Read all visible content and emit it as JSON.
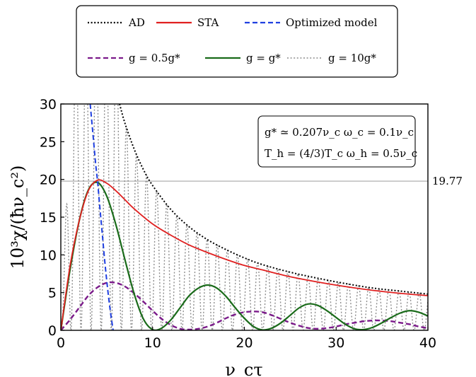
{
  "chart_data": {
    "type": "line",
    "xlabel": "ν_cτ",
    "ylabel": "10³χ/(ħν_c²)",
    "xlim": [
      0,
      40
    ],
    "ylim": [
      0,
      30
    ],
    "xticks": [
      0,
      10,
      20,
      30,
      40
    ],
    "yticks": [
      0,
      5,
      10,
      15,
      20,
      25,
      30
    ],
    "reference_line": {
      "y": 19.77,
      "label": "19.77",
      "color": "#bdbdbd"
    },
    "annotation": {
      "line1": "g* ≃ 0.207ν_c   ω_c = 0.1ν_c",
      "line2": "T_h = (4/3)T_c   ω_h = 0.5ν_c",
      "placement": "top-right"
    },
    "legend_placement": "top-center (outside plot)",
    "series": [
      {
        "name": "AD",
        "color": "#000000",
        "style": "dotted",
        "x": [
          6.4,
          7,
          8,
          9,
          10,
          12,
          14,
          16,
          18,
          20,
          22,
          25,
          28,
          31,
          34,
          37,
          40
        ],
        "y": [
          30.0,
          27.4,
          24.0,
          21.3,
          19.2,
          16.0,
          13.7,
          12.0,
          10.7,
          9.6,
          8.7,
          7.7,
          6.9,
          6.2,
          5.6,
          5.2,
          4.8
        ]
      },
      {
        "name": "STA",
        "color": "#e02020",
        "style": "solid",
        "x": [
          0,
          1,
          2,
          3,
          4,
          5,
          6,
          7,
          8,
          10,
          12,
          14,
          16,
          18,
          20,
          22,
          25,
          28,
          31,
          34,
          37,
          40
        ],
        "y": [
          0,
          8.5,
          14.5,
          18.5,
          19.9,
          19.5,
          18.5,
          17.3,
          16.1,
          14.1,
          12.6,
          11.3,
          10.3,
          9.4,
          8.6,
          8.0,
          7.1,
          6.4,
          5.8,
          5.3,
          4.9,
          4.6
        ]
      },
      {
        "name": "Optimized model",
        "color": "#1f3fe0",
        "style": "dashed",
        "x": [
          3.2,
          3.5,
          3.8,
          4.0,
          4.2,
          4.5,
          4.8,
          5.1,
          5.4,
          5.7
        ],
        "y": [
          30.0,
          26.0,
          22.0,
          19.77,
          17.0,
          13.0,
          9.0,
          5.5,
          2.5,
          0
        ]
      },
      {
        "name": "g = 0.5g*",
        "color": "#7b1a8a",
        "style": "dashed",
        "x": [
          0,
          1,
          2,
          3,
          4,
          5,
          6,
          7,
          8,
          9,
          10,
          11,
          12,
          13,
          14,
          15,
          16,
          17,
          18,
          19,
          20,
          21,
          22,
          23,
          24,
          25,
          26,
          27,
          28,
          29,
          30,
          31,
          32,
          33,
          34,
          35,
          36,
          37,
          38,
          39,
          40
        ],
        "y": [
          0,
          1.4,
          3.0,
          4.6,
          5.7,
          6.3,
          6.3,
          5.8,
          4.9,
          3.8,
          2.6,
          1.5,
          0.7,
          0.2,
          0.1,
          0.2,
          0.5,
          1.0,
          1.6,
          2.1,
          2.4,
          2.5,
          2.4,
          2.0,
          1.5,
          1.0,
          0.6,
          0.3,
          0.2,
          0.3,
          0.5,
          0.8,
          1.0,
          1.2,
          1.3,
          1.3,
          1.2,
          1.0,
          0.8,
          0.5,
          0.3
        ]
      },
      {
        "name": "g = g*",
        "color": "#1a6b1a",
        "style": "solid",
        "x": [
          0,
          1,
          2,
          3,
          4,
          5,
          6,
          7,
          8,
          9,
          10,
          11,
          12,
          13,
          14,
          15,
          16,
          17,
          18,
          19,
          20,
          21,
          22,
          23,
          24,
          25,
          26,
          27,
          28,
          29,
          30,
          31,
          32,
          33,
          34,
          35,
          36,
          37,
          38,
          39,
          40
        ],
        "y": [
          0,
          8.0,
          14.5,
          18.6,
          19.6,
          17.8,
          14.0,
          9.3,
          4.8,
          1.5,
          0.1,
          0.3,
          1.4,
          3.0,
          4.6,
          5.6,
          6.0,
          5.6,
          4.5,
          3.0,
          1.6,
          0.5,
          0.05,
          0.3,
          1.0,
          2.0,
          3.0,
          3.5,
          3.3,
          2.6,
          1.7,
          0.8,
          0.2,
          0.1,
          0.4,
          1.0,
          1.7,
          2.3,
          2.6,
          2.4,
          1.9
        ]
      },
      {
        "name": "g = 10g*",
        "color": "#8c8c8c",
        "style": "dotted",
        "oscillation_period": 1.1,
        "envelope": "rises from 0 and reaches the AD curve; rapid oscillations between 0 and the envelope"
      }
    ]
  }
}
